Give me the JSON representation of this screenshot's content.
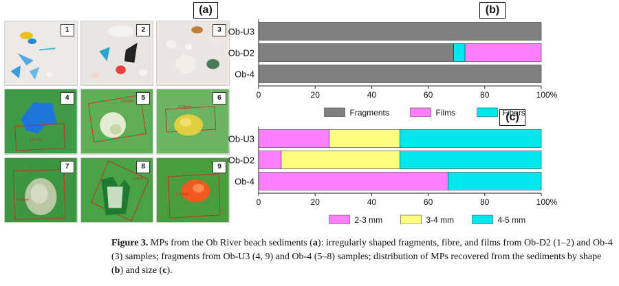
{
  "panels": {
    "a": "(a)",
    "b": "(b)",
    "c": "(c)"
  },
  "photos": [
    {
      "num": "1",
      "measure": ""
    },
    {
      "num": "2",
      "measure": ""
    },
    {
      "num": "3",
      "measure": ""
    },
    {
      "num": "4",
      "measure": "2,87mm"
    },
    {
      "num": "5",
      "measure": "2,62mm"
    },
    {
      "num": "6",
      "measure": "2,75mm"
    },
    {
      "num": "7",
      "measure": "3,86mm"
    },
    {
      "num": "8",
      "measure": "4,11mm"
    },
    {
      "num": "9",
      "measure": "2,77mm"
    }
  ],
  "chart_data": [
    {
      "type": "bar",
      "orientation": "horizontal-stacked-100",
      "panel": "(b)",
      "categories": [
        "Ob-U3",
        "Ob-D2",
        "Ob-4"
      ],
      "series": [
        {
          "name": "Fragments",
          "color": "#808080",
          "values": [
            100,
            69,
            100
          ]
        },
        {
          "name": "Films",
          "color": "#ff80ff",
          "values": [
            0,
            27,
            0
          ]
        },
        {
          "name": "Fibers",
          "color": "#00e8ee",
          "values": [
            0,
            4,
            0
          ]
        }
      ],
      "stack_order": [
        "Fragments",
        "Fibers",
        "Films"
      ],
      "xlim": [
        0,
        100
      ],
      "xticks": [
        "0",
        "20",
        "40",
        "60",
        "80",
        "100%"
      ],
      "legend": "bottom"
    },
    {
      "type": "bar",
      "orientation": "horizontal-stacked-100",
      "panel": "(c)",
      "categories": [
        "Ob-U3",
        "Ob-D2",
        "Ob-4"
      ],
      "series": [
        {
          "name": "2-3 mm",
          "color": "#ff80ff",
          "values": [
            25,
            8,
            67
          ]
        },
        {
          "name": "3-4 mm",
          "color": "#ffff80",
          "values": [
            25,
            42,
            0
          ]
        },
        {
          "name": "4-5 mm",
          "color": "#00e8ee",
          "values": [
            50,
            50,
            33
          ]
        }
      ],
      "stack_order": [
        "2-3 mm",
        "3-4 mm",
        "4-5 mm"
      ],
      "xlim": [
        0,
        100
      ],
      "xticks": [
        "0",
        "20",
        "40",
        "60",
        "80",
        "100%"
      ],
      "legend": "bottom"
    }
  ],
  "caption": {
    "label": "Figure 3.",
    "seg1": " MPs from the Ob River beach sediments (",
    "a": "a",
    "seg2": "): irregularly shaped fragments, fibre, and films from Ob-D2 (1–2) and Ob-4 (3) samples; fragments from Ob-U3 (4, 9) and Ob-4 (5–8) samples; distribution of MPs recovered from the sediments by shape (",
    "b": "b",
    "seg3": ") and size (",
    "c": "c",
    "seg4": ")."
  }
}
